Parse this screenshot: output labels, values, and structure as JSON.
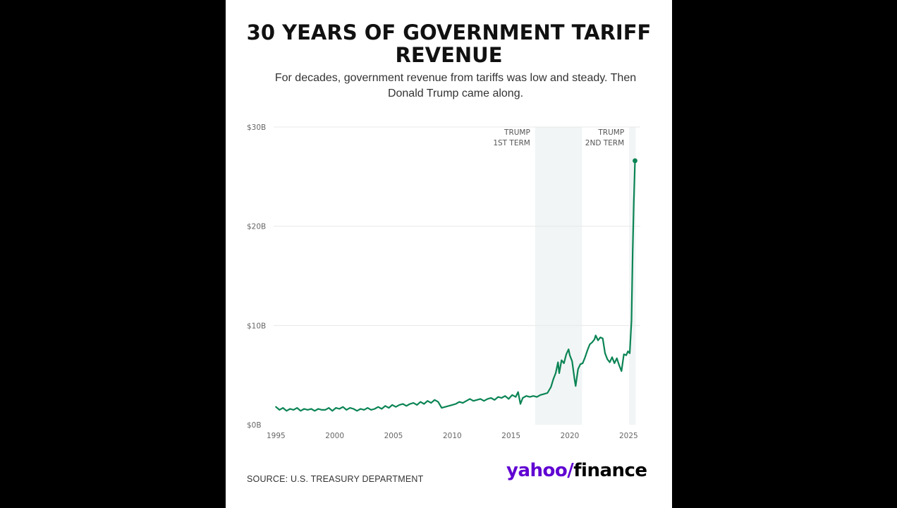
{
  "title": {
    "line1": "30 YEARS OF GOVERNMENT TARIFF",
    "line2": "REVENUE"
  },
  "subtitle": {
    "line1": "For decades, government revenue from tariffs was low and steady. Then",
    "line2": "Donald Trump came along."
  },
  "source": "SOURCE: U.S. TREASURY DEPARTMENT",
  "logo": {
    "part1": "yahoo",
    "slash": "/",
    "part2": "finance"
  },
  "colors": {
    "line": "#0a8454",
    "shade": "#f1f5f5",
    "grid": "#e8e8e8",
    "background": "#ffffff",
    "yahoo_purple": "#6001d2"
  },
  "chart_data": {
    "type": "line",
    "title": "30 YEARS OF GOVERNMENT TARIFF REVENUE",
    "xlim": [
      1994.8,
      2026.0
    ],
    "ylim": [
      0,
      30
    ],
    "y_ticks": [
      {
        "value": 0,
        "label": "$0B"
      },
      {
        "value": 10,
        "label": "$10B"
      },
      {
        "value": 20,
        "label": "$20B"
      },
      {
        "value": 30,
        "label": "$30B"
      }
    ],
    "x_ticks": [
      {
        "value": 1995,
        "label": "1995"
      },
      {
        "value": 2000,
        "label": "2000"
      },
      {
        "value": 2005,
        "label": "2005"
      },
      {
        "value": 2010,
        "label": "2010"
      },
      {
        "value": 2015,
        "label": "2015"
      },
      {
        "value": 2020,
        "label": "2020"
      },
      {
        "value": 2025,
        "label": "2025"
      }
    ],
    "shaded_regions": [
      {
        "start": 2017.05,
        "end": 2021.05,
        "label_lines": [
          "TRUMP",
          "1ST TERM"
        ]
      },
      {
        "start": 2025.05,
        "end": 2025.6,
        "label_lines": [
          "TRUMP",
          "2ND TERM"
        ]
      }
    ],
    "series": [
      {
        "color": "#0a8454",
        "points": [
          [
            1995.0,
            1.8
          ],
          [
            1995.3,
            1.5
          ],
          [
            1995.6,
            1.7
          ],
          [
            1995.9,
            1.4
          ],
          [
            1996.2,
            1.6
          ],
          [
            1996.5,
            1.5
          ],
          [
            1996.8,
            1.7
          ],
          [
            1997.1,
            1.4
          ],
          [
            1997.4,
            1.6
          ],
          [
            1997.7,
            1.5
          ],
          [
            1998.0,
            1.6
          ],
          [
            1998.3,
            1.4
          ],
          [
            1998.6,
            1.6
          ],
          [
            1998.9,
            1.5
          ],
          [
            1999.2,
            1.5
          ],
          [
            1999.5,
            1.7
          ],
          [
            1999.8,
            1.4
          ],
          [
            2000.1,
            1.7
          ],
          [
            2000.4,
            1.6
          ],
          [
            2000.7,
            1.8
          ],
          [
            2001.0,
            1.5
          ],
          [
            2001.3,
            1.7
          ],
          [
            2001.6,
            1.6
          ],
          [
            2001.9,
            1.4
          ],
          [
            2002.2,
            1.6
          ],
          [
            2002.5,
            1.5
          ],
          [
            2002.8,
            1.7
          ],
          [
            2003.1,
            1.5
          ],
          [
            2003.4,
            1.6
          ],
          [
            2003.7,
            1.8
          ],
          [
            2004.0,
            1.6
          ],
          [
            2004.3,
            1.9
          ],
          [
            2004.6,
            1.7
          ],
          [
            2004.9,
            2.0
          ],
          [
            2005.2,
            1.8
          ],
          [
            2005.5,
            2.0
          ],
          [
            2005.8,
            2.1
          ],
          [
            2006.1,
            1.9
          ],
          [
            2006.4,
            2.1
          ],
          [
            2006.7,
            2.2
          ],
          [
            2007.0,
            2.0
          ],
          [
            2007.3,
            2.3
          ],
          [
            2007.6,
            2.1
          ],
          [
            2007.9,
            2.4
          ],
          [
            2008.2,
            2.2
          ],
          [
            2008.5,
            2.5
          ],
          [
            2008.8,
            2.3
          ],
          [
            2009.1,
            1.7
          ],
          [
            2009.4,
            1.8
          ],
          [
            2009.7,
            1.9
          ],
          [
            2010.0,
            2.0
          ],
          [
            2010.3,
            2.1
          ],
          [
            2010.6,
            2.3
          ],
          [
            2010.9,
            2.2
          ],
          [
            2011.2,
            2.4
          ],
          [
            2011.5,
            2.6
          ],
          [
            2011.8,
            2.4
          ],
          [
            2012.1,
            2.5
          ],
          [
            2012.4,
            2.6
          ],
          [
            2012.7,
            2.4
          ],
          [
            2013.0,
            2.6
          ],
          [
            2013.3,
            2.7
          ],
          [
            2013.6,
            2.5
          ],
          [
            2013.9,
            2.8
          ],
          [
            2014.2,
            2.7
          ],
          [
            2014.5,
            2.9
          ],
          [
            2014.8,
            2.6
          ],
          [
            2015.1,
            3.0
          ],
          [
            2015.4,
            2.8
          ],
          [
            2015.6,
            3.3
          ],
          [
            2015.8,
            2.1
          ],
          [
            2016.0,
            2.7
          ],
          [
            2016.3,
            2.9
          ],
          [
            2016.6,
            2.8
          ],
          [
            2016.9,
            2.9
          ],
          [
            2017.2,
            2.8
          ],
          [
            2017.5,
            3.0
          ],
          [
            2017.8,
            3.1
          ],
          [
            2018.1,
            3.2
          ],
          [
            2018.4,
            3.8
          ],
          [
            2018.6,
            4.6
          ],
          [
            2018.8,
            5.2
          ],
          [
            2019.0,
            6.3
          ],
          [
            2019.1,
            5.2
          ],
          [
            2019.3,
            6.5
          ],
          [
            2019.5,
            6.2
          ],
          [
            2019.7,
            7.1
          ],
          [
            2019.9,
            7.6
          ],
          [
            2020.0,
            7.0
          ],
          [
            2020.2,
            6.4
          ],
          [
            2020.4,
            4.6
          ],
          [
            2020.5,
            3.9
          ],
          [
            2020.7,
            5.6
          ],
          [
            2020.9,
            6.1
          ],
          [
            2021.1,
            6.2
          ],
          [
            2021.3,
            6.8
          ],
          [
            2021.5,
            7.5
          ],
          [
            2021.7,
            8.1
          ],
          [
            2021.9,
            8.3
          ],
          [
            2022.1,
            8.6
          ],
          [
            2022.2,
            9.0
          ],
          [
            2022.4,
            8.5
          ],
          [
            2022.6,
            8.8
          ],
          [
            2022.8,
            8.7
          ],
          [
            2023.0,
            7.2
          ],
          [
            2023.2,
            6.6
          ],
          [
            2023.4,
            6.3
          ],
          [
            2023.6,
            6.8
          ],
          [
            2023.8,
            6.2
          ],
          [
            2024.0,
            6.7
          ],
          [
            2024.2,
            6.0
          ],
          [
            2024.4,
            5.4
          ],
          [
            2024.6,
            7.1
          ],
          [
            2024.8,
            7.0
          ],
          [
            2024.95,
            7.4
          ],
          [
            2025.1,
            7.2
          ],
          [
            2025.25,
            10.5
          ],
          [
            2025.35,
            17.5
          ],
          [
            2025.45,
            22.5
          ],
          [
            2025.55,
            26.6
          ]
        ]
      }
    ]
  }
}
